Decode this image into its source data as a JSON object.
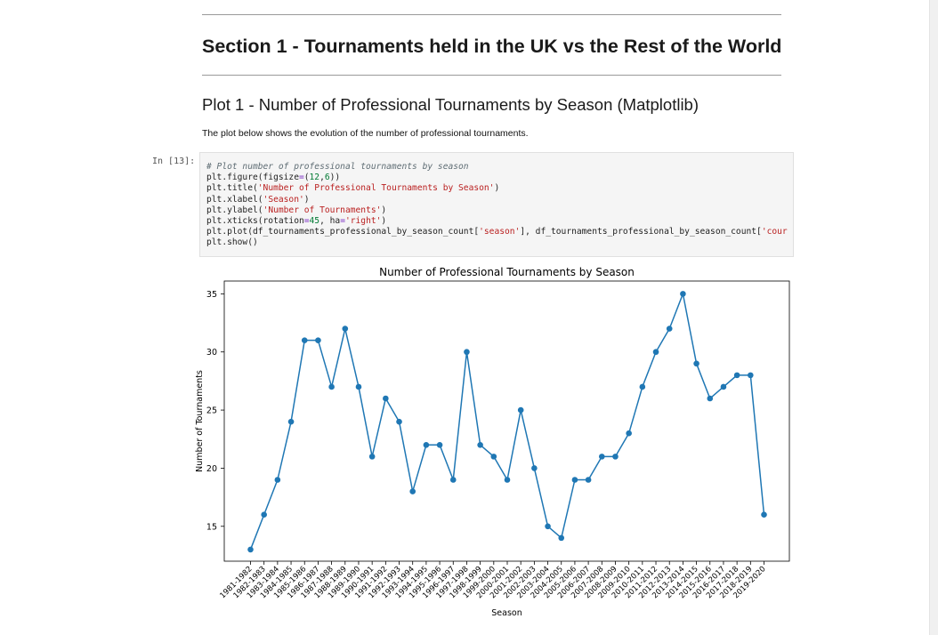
{
  "notebook": {
    "section_title": "Section 1 - Tournaments held in the UK vs the Rest of the World",
    "plot_title": "Plot 1 - Number of Professional Tournaments by Season (Matplotlib)",
    "description": "The plot below shows the evolution of the number of professional tournaments.",
    "cell_prompt": "In [13]:",
    "code_lines": [
      "# Plot number of professional tournaments by season",
      "plt.figure(figsize=(12,6))",
      "plt.title('Number of Professional Tournaments by Season')",
      "plt.xlabel('Season')",
      "plt.ylabel('Number of Tournaments')",
      "plt.xticks(rotation=45, ha='right')",
      "plt.plot(df_tournaments_professional_by_season_count['season'], df_tournaments_professional_by_season_count['cour",
      "plt.show()"
    ]
  },
  "colors": {
    "line": "#1f77b4",
    "marker": "#1f77b4",
    "code_bg": "#f5f5f5"
  },
  "chart_data": {
    "type": "line",
    "title": "Number of Professional Tournaments by Season",
    "xlabel": "Season",
    "ylabel": "Number of Tournaments",
    "ylim": [
      12.0,
      36.1
    ],
    "yticks": [
      15,
      20,
      25,
      30,
      35
    ],
    "grid": false,
    "marker": "o",
    "categories": [
      "1981-1982",
      "1982-1983",
      "1983-1984",
      "1984-1985",
      "1985-1986",
      "1986-1987",
      "1987-1988",
      "1988-1989",
      "1989-1990",
      "1990-1991",
      "1991-1992",
      "1992-1993",
      "1993-1994",
      "1994-1995",
      "1995-1996",
      "1996-1997",
      "1997-1998",
      "1998-1999",
      "1999-2000",
      "2000-2001",
      "2001-2002",
      "2002-2003",
      "2003-2004",
      "2004-2005",
      "2005-2006",
      "2006-2007",
      "2007-2008",
      "2008-2009",
      "2009-2010",
      "2010-2011",
      "2011-2012",
      "2012-2013",
      "2013-2014",
      "2014-2015",
      "2015-2016",
      "2016-2017",
      "2017-2018",
      "2018-2019",
      "2019-2020"
    ],
    "values": [
      13,
      16,
      19,
      24,
      31,
      31,
      27,
      32,
      27,
      21,
      26,
      24,
      18,
      22,
      22,
      19,
      30,
      22,
      21,
      19,
      25,
      20,
      15,
      14,
      19,
      19,
      21,
      21,
      23,
      27,
      30,
      32,
      35,
      29,
      26,
      27,
      28,
      28,
      16
    ]
  }
}
